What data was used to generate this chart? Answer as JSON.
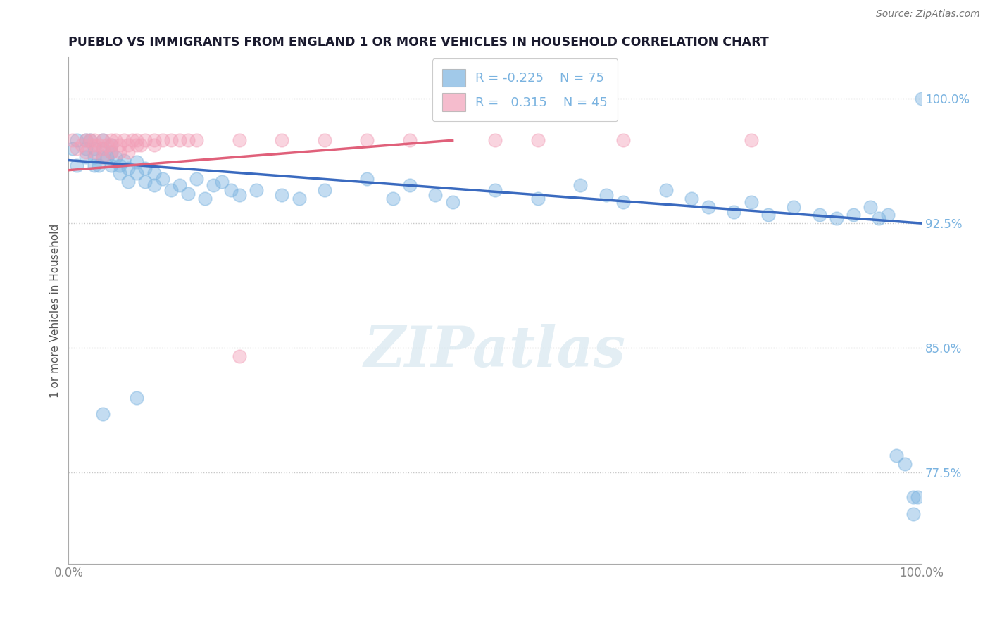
{
  "title": "PUEBLO VS IMMIGRANTS FROM ENGLAND 1 OR MORE VEHICLES IN HOUSEHOLD CORRELATION CHART",
  "source_text": "Source: ZipAtlas.com",
  "ylabel": "1 or more Vehicles in Household",
  "xlabel": "",
  "xlim": [
    0.0,
    1.0
  ],
  "ylim": [
    0.72,
    1.025
  ],
  "yticks": [
    0.775,
    0.85,
    0.925,
    1.0
  ],
  "ytick_labels": [
    "77.5%",
    "85.0%",
    "92.5%",
    "100.0%"
  ],
  "xticks": [
    0.0,
    1.0
  ],
  "xtick_labels": [
    "0.0%",
    "100.0%"
  ],
  "pueblo_R": -0.225,
  "pueblo_N": 75,
  "immigrants_R": 0.315,
  "immigrants_N": 45,
  "pueblo_color": "#7ab3e0",
  "immigrants_color": "#f2a0b8",
  "pueblo_line_color": "#3a6abf",
  "immigrants_line_color": "#e0607a",
  "background_color": "#ffffff",
  "watermark": "ZIPatlas",
  "pueblo_x": [
    0.005,
    0.01,
    0.01,
    0.02,
    0.02,
    0.02,
    0.025,
    0.03,
    0.03,
    0.03,
    0.035,
    0.04,
    0.04,
    0.04,
    0.045,
    0.05,
    0.05,
    0.05,
    0.055,
    0.06,
    0.06,
    0.065,
    0.07,
    0.07,
    0.08,
    0.08,
    0.09,
    0.09,
    0.1,
    0.1,
    0.11,
    0.12,
    0.13,
    0.14,
    0.15,
    0.16,
    0.17,
    0.18,
    0.19,
    0.2,
    0.22,
    0.25,
    0.27,
    0.3,
    0.35,
    0.38,
    0.4,
    0.43,
    0.45,
    0.5,
    0.55,
    0.6,
    0.63,
    0.65,
    0.7,
    0.73,
    0.75,
    0.78,
    0.8,
    0.82,
    0.85,
    0.88,
    0.9,
    0.92,
    0.94,
    0.95,
    0.96,
    0.97,
    0.98,
    0.99,
    0.99,
    0.995,
    1.0,
    0.04,
    0.08
  ],
  "pueblo_y": [
    0.97,
    0.96,
    0.975,
    0.965,
    0.97,
    0.975,
    0.975,
    0.965,
    0.97,
    0.96,
    0.96,
    0.965,
    0.97,
    0.975,
    0.965,
    0.96,
    0.968,
    0.972,
    0.965,
    0.955,
    0.96,
    0.963,
    0.95,
    0.958,
    0.955,
    0.962,
    0.95,
    0.958,
    0.948,
    0.955,
    0.952,
    0.945,
    0.948,
    0.943,
    0.952,
    0.94,
    0.948,
    0.95,
    0.945,
    0.942,
    0.945,
    0.942,
    0.94,
    0.945,
    0.952,
    0.94,
    0.948,
    0.942,
    0.938,
    0.945,
    0.94,
    0.948,
    0.942,
    0.938,
    0.945,
    0.94,
    0.935,
    0.932,
    0.938,
    0.93,
    0.935,
    0.93,
    0.928,
    0.93,
    0.935,
    0.928,
    0.93,
    0.785,
    0.78,
    0.76,
    0.75,
    0.76,
    1.0,
    0.81,
    0.82
  ],
  "immigrants_x": [
    0.005,
    0.01,
    0.015,
    0.02,
    0.02,
    0.025,
    0.03,
    0.03,
    0.03,
    0.035,
    0.04,
    0.04,
    0.04,
    0.045,
    0.05,
    0.05,
    0.05,
    0.055,
    0.06,
    0.06,
    0.065,
    0.07,
    0.07,
    0.075,
    0.08,
    0.08,
    0.085,
    0.09,
    0.1,
    0.1,
    0.11,
    0.12,
    0.13,
    0.14,
    0.15,
    0.2,
    0.25,
    0.3,
    0.35,
    0.4,
    0.5,
    0.55,
    0.65,
    0.8,
    0.2
  ],
  "immigrants_y": [
    0.975,
    0.97,
    0.972,
    0.968,
    0.975,
    0.975,
    0.972,
    0.968,
    0.975,
    0.972,
    0.975,
    0.97,
    0.965,
    0.972,
    0.975,
    0.968,
    0.972,
    0.975,
    0.972,
    0.968,
    0.975,
    0.972,
    0.968,
    0.975,
    0.972,
    0.975,
    0.972,
    0.975,
    0.972,
    0.975,
    0.975,
    0.975,
    0.975,
    0.975,
    0.975,
    0.975,
    0.975,
    0.975,
    0.975,
    0.975,
    0.975,
    0.975,
    0.975,
    0.975,
    0.845
  ]
}
